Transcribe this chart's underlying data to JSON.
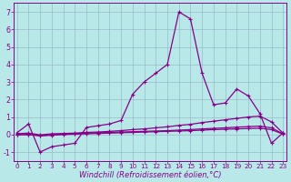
{
  "xlabel": "Windchill (Refroidissement éolien,°C)",
  "x": [
    0,
    1,
    2,
    3,
    4,
    5,
    6,
    7,
    8,
    9,
    10,
    11,
    12,
    13,
    14,
    15,
    16,
    17,
    18,
    19,
    20,
    21,
    22,
    23
  ],
  "series": [
    [
      0.1,
      0.6,
      -1.0,
      -0.7,
      -0.6,
      -0.5,
      0.4,
      0.5,
      0.6,
      0.8,
      2.3,
      3.0,
      3.5,
      4.0,
      7.0,
      6.6,
      3.5,
      1.7,
      1.8,
      2.6,
      2.2,
      1.2,
      -0.5,
      0.1
    ],
    [
      0.05,
      0.08,
      -0.02,
      0.04,
      0.06,
      0.08,
      0.12,
      0.14,
      0.18,
      0.22,
      0.28,
      0.32,
      0.38,
      0.44,
      0.52,
      0.58,
      0.68,
      0.76,
      0.84,
      0.92,
      1.0,
      1.05,
      0.72,
      0.08
    ],
    [
      -0.02,
      0.0,
      -0.06,
      -0.02,
      0.02,
      0.05,
      0.08,
      0.1,
      0.12,
      0.14,
      0.16,
      0.18,
      0.2,
      0.22,
      0.25,
      0.28,
      0.32,
      0.35,
      0.38,
      0.42,
      0.45,
      0.48,
      0.38,
      0.04
    ],
    [
      -0.02,
      0.0,
      -0.08,
      -0.04,
      0.0,
      0.02,
      0.04,
      0.06,
      0.08,
      0.1,
      0.12,
      0.14,
      0.16,
      0.18,
      0.2,
      0.22,
      0.25,
      0.28,
      0.3,
      0.32,
      0.34,
      0.36,
      0.28,
      0.02
    ]
  ],
  "line_color": "#880088",
  "bg_color": "#b8e8e8",
  "grid_color": "#99bbcc",
  "ylim": [
    -1.5,
    7.5
  ],
  "yticks": [
    -1,
    0,
    1,
    2,
    3,
    4,
    5,
    6,
    7
  ],
  "xticks": [
    0,
    1,
    2,
    3,
    4,
    5,
    6,
    7,
    8,
    9,
    10,
    11,
    12,
    13,
    14,
    15,
    16,
    17,
    18,
    19,
    20,
    21,
    22,
    23
  ],
  "marker": "+",
  "markersize": 3.5,
  "linewidth": 0.9,
  "tick_fontsize": 5.2,
  "xlabel_fontsize": 6.0
}
